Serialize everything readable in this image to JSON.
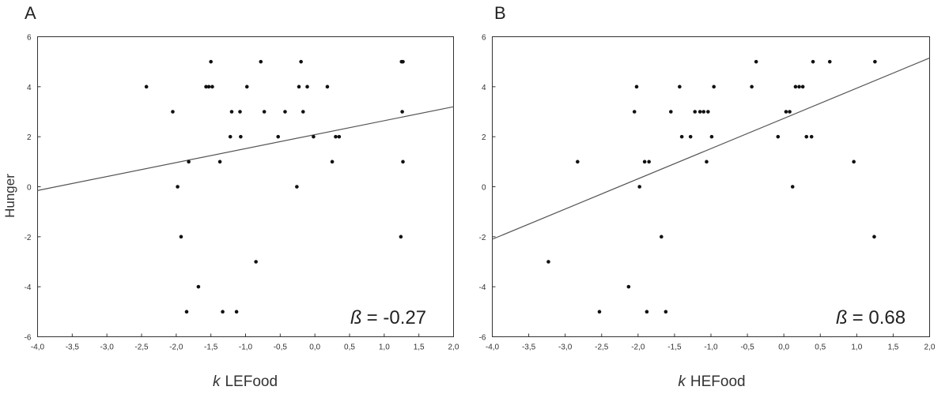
{
  "figure": {
    "y_axis_label": "Hunger"
  },
  "chart_data": [
    {
      "type": "scatter",
      "panel_label": "A",
      "title": "",
      "xlabel_italic": "k",
      "xlabel": "LEFood",
      "ylabel": "Hunger",
      "xlim": [
        -4.0,
        2.0
      ],
      "ylim": [
        -6,
        6
      ],
      "xticks": [
        "-4,0",
        "-3,5",
        "-3,0",
        "-2,5",
        "-2,0",
        "-1,5",
        "-1,0",
        "-0,5",
        "0,0",
        "0,5",
        "1,0",
        "1,5",
        "2,0"
      ],
      "xtick_values": [
        -4.0,
        -3.5,
        -3.0,
        -2.5,
        -2.0,
        -1.5,
        -1.0,
        -0.5,
        0.0,
        0.5,
        1.0,
        1.5,
        2.0
      ],
      "yticks": [
        "-6",
        "-4",
        "-2",
        "0",
        "2",
        "4",
        "6"
      ],
      "ytick_values": [
        -6,
        -4,
        -2,
        0,
        2,
        4,
        6
      ],
      "grid": false,
      "fit_line": {
        "x": [
          -4.0,
          2.0
        ],
        "y": [
          -0.15,
          3.2
        ]
      },
      "annotation_symbol": "ß",
      "annotation_value": "= -0.27",
      "points": [
        [
          -2.43,
          4
        ],
        [
          -2.05,
          3
        ],
        [
          -1.98,
          0
        ],
        [
          -1.93,
          -2
        ],
        [
          -1.85,
          -5
        ],
        [
          -1.82,
          1
        ],
        [
          -1.68,
          -4
        ],
        [
          -1.57,
          4
        ],
        [
          -1.53,
          4
        ],
        [
          -1.5,
          5
        ],
        [
          -1.48,
          4
        ],
        [
          -1.37,
          1
        ],
        [
          -1.33,
          -5
        ],
        [
          -1.22,
          2
        ],
        [
          -1.2,
          3
        ],
        [
          -1.13,
          -5
        ],
        [
          -1.08,
          3
        ],
        [
          -1.07,
          2
        ],
        [
          -0.98,
          4
        ],
        [
          -0.85,
          -3
        ],
        [
          -0.78,
          5
        ],
        [
          -0.73,
          3
        ],
        [
          -0.53,
          2
        ],
        [
          -0.43,
          3
        ],
        [
          -0.26,
          0
        ],
        [
          -0.23,
          4
        ],
        [
          -0.2,
          5
        ],
        [
          -0.17,
          3
        ],
        [
          -0.11,
          4
        ],
        [
          -0.02,
          2
        ],
        [
          0.18,
          4
        ],
        [
          0.25,
          1
        ],
        [
          0.3,
          2
        ],
        [
          0.35,
          2
        ],
        [
          1.24,
          -2
        ],
        [
          1.25,
          5
        ],
        [
          1.26,
          3
        ],
        [
          1.27,
          1
        ],
        [
          1.27,
          5
        ]
      ]
    },
    {
      "type": "scatter",
      "panel_label": "B",
      "title": "",
      "xlabel_italic": "k",
      "xlabel": "HEFood",
      "ylabel": "",
      "xlim": [
        -4.0,
        2.0
      ],
      "ylim": [
        -6,
        6
      ],
      "xticks": [
        "-4,0",
        "-3,5",
        "-3,0",
        "-2,5",
        "-2,0",
        "-1,5",
        "-1,0",
        "-0,5",
        "0,0",
        "0,5",
        "1,0",
        "1,5",
        "2,0"
      ],
      "xtick_values": [
        -4.0,
        -3.5,
        -3.0,
        -2.5,
        -2.0,
        -1.5,
        -1.0,
        -0.5,
        0.0,
        0.5,
        1.0,
        1.5,
        2.0
      ],
      "yticks": [
        "-6",
        "-4",
        "-2",
        "0",
        "2",
        "4",
        "6"
      ],
      "ytick_values": [
        -6,
        -4,
        -2,
        0,
        2,
        4,
        6
      ],
      "grid": false,
      "fit_line": {
        "x": [
          -4.0,
          2.0
        ],
        "y": [
          -2.1,
          5.15
        ]
      },
      "annotation_symbol": "ß",
      "annotation_value": "= 0.68",
      "points": [
        [
          -3.23,
          -3
        ],
        [
          -2.83,
          1
        ],
        [
          -2.53,
          -5
        ],
        [
          -2.13,
          -4
        ],
        [
          -2.05,
          3
        ],
        [
          -2.02,
          4
        ],
        [
          -1.98,
          0
        ],
        [
          -1.91,
          1
        ],
        [
          -1.88,
          -5
        ],
        [
          -1.85,
          1
        ],
        [
          -1.68,
          -2
        ],
        [
          -1.62,
          -5
        ],
        [
          -1.55,
          3
        ],
        [
          -1.43,
          4
        ],
        [
          -1.4,
          2
        ],
        [
          -1.28,
          2
        ],
        [
          -1.22,
          3
        ],
        [
          -1.15,
          3
        ],
        [
          -1.1,
          3
        ],
        [
          -1.06,
          1
        ],
        [
          -1.04,
          3
        ],
        [
          -0.99,
          2
        ],
        [
          -0.96,
          4
        ],
        [
          -0.44,
          4
        ],
        [
          -0.38,
          5
        ],
        [
          -0.08,
          2
        ],
        [
          0.03,
          3
        ],
        [
          0.08,
          3
        ],
        [
          0.12,
          0
        ],
        [
          0.16,
          4
        ],
        [
          0.21,
          4
        ],
        [
          0.26,
          4
        ],
        [
          0.31,
          2
        ],
        [
          0.38,
          2
        ],
        [
          0.4,
          5
        ],
        [
          0.63,
          5
        ],
        [
          0.96,
          1
        ],
        [
          1.24,
          -2
        ],
        [
          1.25,
          5
        ]
      ]
    }
  ]
}
